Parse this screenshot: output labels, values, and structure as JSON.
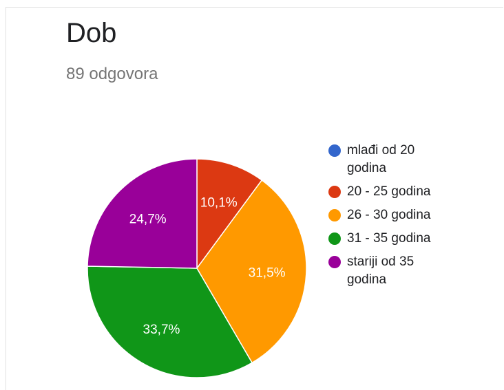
{
  "header": {
    "title": "Dob",
    "subtitle": "89 odgovora"
  },
  "chart_data": {
    "type": "pie",
    "title": "Dob",
    "subtitle": "89 odgovora",
    "categories": [
      "mlađi od 20 godina",
      "20 - 25 godina",
      "26 - 30 godina",
      "31 - 35 godina",
      "stariji od 35 godina"
    ],
    "values": [
      0,
      10.1,
      31.5,
      33.7,
      24.7
    ],
    "data_labels": [
      "",
      "10,1%",
      "31,5%",
      "33,7%",
      "24,7%"
    ],
    "colors": [
      "#3366cc",
      "#dc3912",
      "#ff9900",
      "#109618",
      "#990099"
    ],
    "legend_position": "right",
    "start_angle": "top, clockwise"
  }
}
